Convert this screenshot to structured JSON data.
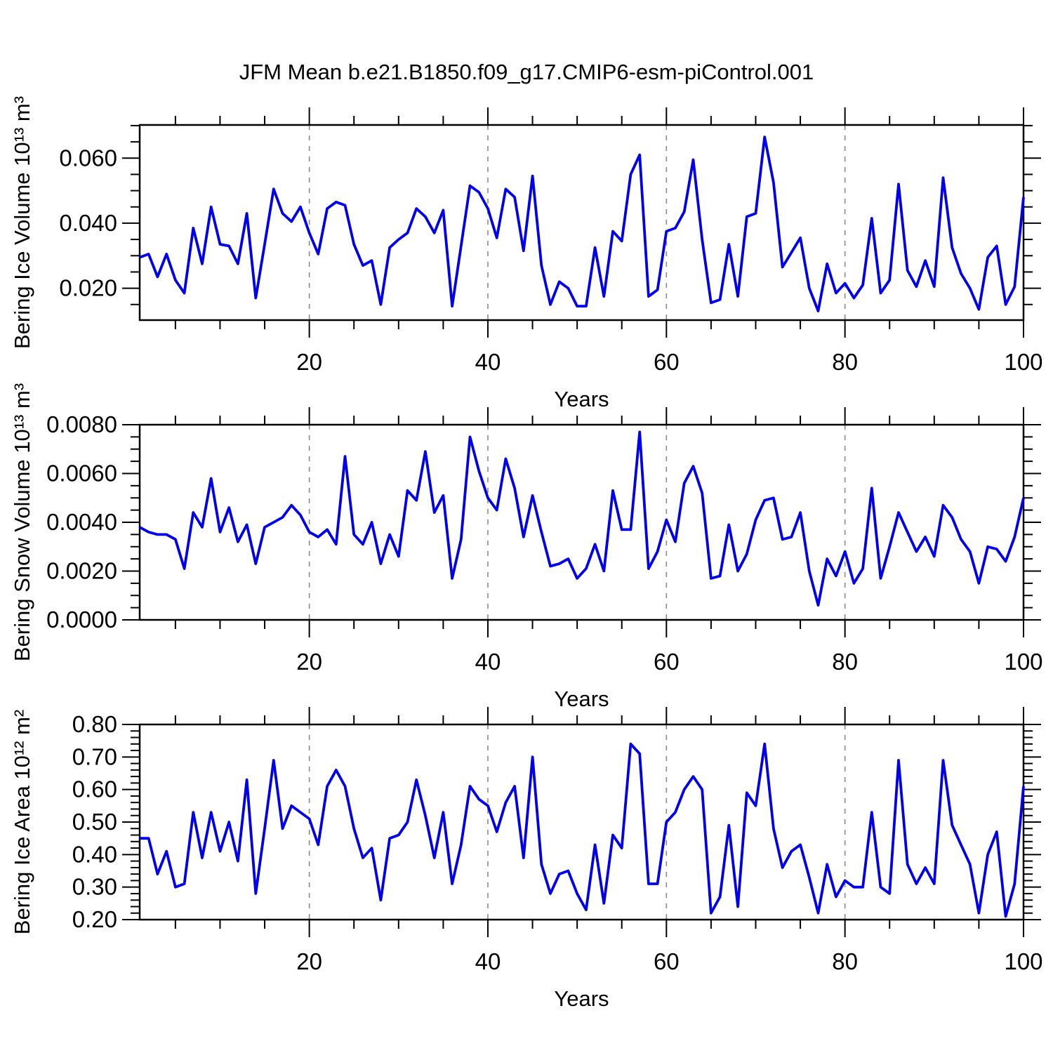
{
  "title": "JFM Mean b.e21.B1850.f09_g17.CMIP6-esm-piControl.001",
  "colors": {
    "line": "#0000EE",
    "grid": "#8a8a8a",
    "axis": "#000000",
    "background": "#ffffff"
  },
  "years": [
    1,
    2,
    3,
    4,
    5,
    6,
    7,
    8,
    9,
    10,
    11,
    12,
    13,
    14,
    15,
    16,
    17,
    18,
    19,
    20,
    21,
    22,
    23,
    24,
    25,
    26,
    27,
    28,
    29,
    30,
    31,
    32,
    33,
    34,
    35,
    36,
    37,
    38,
    39,
    40,
    41,
    42,
    43,
    44,
    45,
    46,
    47,
    48,
    49,
    50,
    51,
    52,
    53,
    54,
    55,
    56,
    57,
    58,
    59,
    60,
    61,
    62,
    63,
    64,
    65,
    66,
    67,
    68,
    69,
    70,
    71,
    72,
    73,
    74,
    75,
    76,
    77,
    78,
    79,
    80,
    81,
    82,
    83,
    84,
    85,
    86,
    87,
    88,
    89,
    90,
    91,
    92,
    93,
    94,
    95,
    96,
    97,
    98,
    99,
    100
  ],
  "chart_data": [
    {
      "type": "line",
      "id": "ice-volume",
      "ylabel": "Bering Ice Volume 10¹³ m³",
      "xlabel": "Years",
      "ylim": [
        0.0102,
        0.0702
      ],
      "yticks": [
        0.02,
        0.04,
        0.06
      ],
      "ytick_labels": [
        "0.020",
        "0.040",
        "0.060"
      ],
      "y_minor_step": 0.005,
      "xlim": [
        1,
        100
      ],
      "xticks": [
        20,
        40,
        60,
        80,
        100
      ],
      "xtick_labels": [
        "20",
        "40",
        "60",
        "80",
        "100"
      ],
      "x_minor_step": 5,
      "grid_x": [
        20,
        40,
        60,
        80
      ],
      "values": [
        0.0295,
        0.0305,
        0.0235,
        0.0305,
        0.0225,
        0.0185,
        0.0385,
        0.0275,
        0.045,
        0.0335,
        0.033,
        0.0275,
        0.043,
        0.017,
        0.0335,
        0.0505,
        0.043,
        0.0405,
        0.045,
        0.037,
        0.0305,
        0.0445,
        0.0465,
        0.0455,
        0.0335,
        0.027,
        0.0285,
        0.015,
        0.0325,
        0.035,
        0.037,
        0.0445,
        0.042,
        0.037,
        0.044,
        0.0145,
        0.033,
        0.0515,
        0.0495,
        0.0445,
        0.0355,
        0.0505,
        0.048,
        0.0315,
        0.0545,
        0.027,
        0.015,
        0.022,
        0.02,
        0.0145,
        0.0145,
        0.0325,
        0.0175,
        0.0375,
        0.0345,
        0.055,
        0.061,
        0.0175,
        0.0195,
        0.0375,
        0.0385,
        0.0435,
        0.0595,
        0.035,
        0.0155,
        0.0165,
        0.0335,
        0.0175,
        0.042,
        0.043,
        0.0665,
        0.0525,
        0.0265,
        0.031,
        0.0355,
        0.02,
        0.013,
        0.0275,
        0.0185,
        0.0215,
        0.017,
        0.021,
        0.0415,
        0.0185,
        0.0225,
        0.052,
        0.0255,
        0.0205,
        0.0285,
        0.0205,
        0.054,
        0.0325,
        0.0245,
        0.02,
        0.0135,
        0.0295,
        0.033,
        0.015,
        0.0205,
        0.048
      ]
    },
    {
      "type": "line",
      "id": "snow-volume",
      "ylabel": "Bering Snow Volume 10¹³ m³",
      "xlabel": "Years",
      "ylim": [
        0.0,
        0.008
      ],
      "yticks": [
        0.0,
        0.002,
        0.004,
        0.006,
        0.008
      ],
      "ytick_labels": [
        "0.0000",
        "0.0020",
        "0.0040",
        "0.0060",
        "0.0080"
      ],
      "y_minor_step": 0.0005,
      "xlim": [
        1,
        100
      ],
      "xticks": [
        20,
        40,
        60,
        80,
        100
      ],
      "xtick_labels": [
        "20",
        "40",
        "60",
        "80",
        "100"
      ],
      "x_minor_step": 5,
      "grid_x": [
        20,
        40,
        60,
        80
      ],
      "values": [
        0.0038,
        0.0036,
        0.0035,
        0.0035,
        0.0033,
        0.0021,
        0.0044,
        0.0038,
        0.0058,
        0.0036,
        0.0046,
        0.0032,
        0.0039,
        0.0023,
        0.0038,
        0.004,
        0.0042,
        0.0047,
        0.0043,
        0.0036,
        0.0034,
        0.0037,
        0.0031,
        0.0067,
        0.0035,
        0.0031,
        0.004,
        0.0023,
        0.0035,
        0.0026,
        0.0053,
        0.0049,
        0.0069,
        0.0044,
        0.0051,
        0.0017,
        0.0033,
        0.0075,
        0.0061,
        0.005,
        0.0045,
        0.0066,
        0.0054,
        0.0034,
        0.0051,
        0.0036,
        0.0022,
        0.0023,
        0.0025,
        0.0017,
        0.0021,
        0.0031,
        0.002,
        0.0053,
        0.0037,
        0.0037,
        0.0077,
        0.0021,
        0.0028,
        0.0041,
        0.0032,
        0.0056,
        0.0063,
        0.0052,
        0.0017,
        0.0018,
        0.0039,
        0.002,
        0.0027,
        0.0041,
        0.0049,
        0.005,
        0.0033,
        0.0034,
        0.0044,
        0.002,
        0.0006,
        0.0025,
        0.0018,
        0.0028,
        0.0015,
        0.0021,
        0.0054,
        0.0017,
        0.003,
        0.0044,
        0.0036,
        0.0028,
        0.0034,
        0.0026,
        0.0047,
        0.0042,
        0.0033,
        0.0028,
        0.0015,
        0.003,
        0.0029,
        0.0024,
        0.0034,
        0.005
      ]
    },
    {
      "type": "line",
      "id": "ice-area",
      "ylabel": "Bering Ice Area 10¹² m²",
      "xlabel": "Years",
      "ylim": [
        0.2,
        0.8
      ],
      "yticks": [
        0.2,
        0.3,
        0.4,
        0.5,
        0.6,
        0.7,
        0.8
      ],
      "ytick_labels": [
        "0.20",
        "0.30",
        "0.40",
        "0.50",
        "0.60",
        "0.70",
        "0.80"
      ],
      "y_minor_step": 0.02,
      "xlim": [
        1,
        100
      ],
      "xticks": [
        20,
        40,
        60,
        80,
        100
      ],
      "xtick_labels": [
        "20",
        "40",
        "60",
        "80",
        "100"
      ],
      "x_minor_step": 5,
      "grid_x": [
        20,
        40,
        60,
        80
      ],
      "values": [
        0.45,
        0.45,
        0.34,
        0.41,
        0.3,
        0.31,
        0.53,
        0.39,
        0.53,
        0.41,
        0.5,
        0.38,
        0.63,
        0.28,
        0.48,
        0.69,
        0.48,
        0.55,
        0.53,
        0.51,
        0.43,
        0.61,
        0.66,
        0.61,
        0.48,
        0.39,
        0.42,
        0.26,
        0.45,
        0.46,
        0.5,
        0.63,
        0.52,
        0.39,
        0.53,
        0.31,
        0.43,
        0.61,
        0.57,
        0.55,
        0.47,
        0.56,
        0.61,
        0.39,
        0.7,
        0.37,
        0.28,
        0.34,
        0.35,
        0.28,
        0.23,
        0.43,
        0.25,
        0.46,
        0.42,
        0.74,
        0.71,
        0.31,
        0.31,
        0.5,
        0.53,
        0.6,
        0.64,
        0.6,
        0.22,
        0.27,
        0.49,
        0.24,
        0.59,
        0.55,
        0.74,
        0.48,
        0.36,
        0.41,
        0.43,
        0.33,
        0.22,
        0.37,
        0.27,
        0.32,
        0.3,
        0.3,
        0.53,
        0.3,
        0.28,
        0.69,
        0.37,
        0.31,
        0.36,
        0.31,
        0.69,
        0.49,
        0.43,
        0.37,
        0.22,
        0.4,
        0.47,
        0.21,
        0.31,
        0.61
      ]
    }
  ]
}
